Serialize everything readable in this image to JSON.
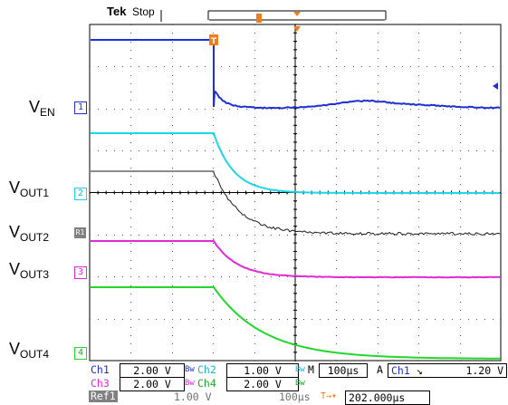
{
  "header": {
    "brand": "Tek",
    "status": "Stop",
    "trigger_marker": "T"
  },
  "channels": [
    {
      "marker": "1",
      "label_main": "V",
      "label_sub": "EN",
      "color": "#1f2fd6"
    },
    {
      "marker": "2",
      "label_main": "V",
      "label_sub": "OUT1",
      "color": "#1ad6e6"
    },
    {
      "marker": "R1",
      "label_main": "V",
      "label_sub": "OUT2",
      "color": "#1a1a1a"
    },
    {
      "marker": "3",
      "label_main": "V",
      "label_sub": "OUT3",
      "color": "#e02ad8"
    },
    {
      "marker": "4",
      "label_main": "V",
      "label_sub": "OUT4",
      "color": "#22d62a"
    }
  ],
  "readouts": {
    "row1": {
      "ch1_name": "Ch1",
      "ch1_value": "2.00 V",
      "ch2_name": "Ch2",
      "ch2_value": "1.00 V",
      "timebase_label": "M",
      "timebase_value": "100µs",
      "trigger_label": "A",
      "trigger_source": "Ch1",
      "trigger_level": "1.20 V"
    },
    "row2": {
      "ch3_name": "Ch3",
      "ch3_value": "2.00 V",
      "ch4_name": "Ch4",
      "ch4_value": "2.00 V"
    },
    "row3": {
      "ref_name": "Ref1",
      "ref_value": "1.00 V",
      "ref_time": "100µs",
      "trigger_pos": "202.000µs"
    }
  },
  "colors": {
    "grid": "#000000",
    "ch1": "#1f2fd6",
    "ch2": "#1ad6e6",
    "ref1": "#1a1a1a",
    "ch3": "#e02ad8",
    "ch4": "#22d62a",
    "trigger": "#f07d1a"
  },
  "icons": {
    "trigger_marker": "trigger-t-icon",
    "trigger_arrow": "trigger-down-arrow-icon",
    "level_arrow": "trigger-level-arrow-icon",
    "falling_edge": "falling-edge-icon"
  }
}
